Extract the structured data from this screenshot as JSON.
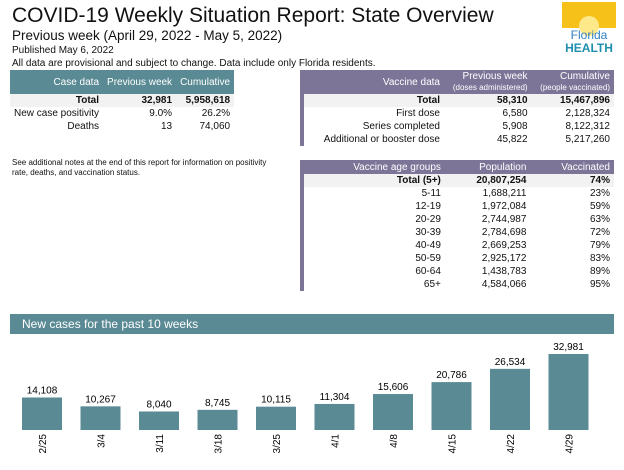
{
  "header": {
    "title": "COVID-19 Weekly Situation Report: State Overview",
    "subtitle": "Previous week (April 29, 2022 - May 5, 2022)",
    "published": "Published May 6, 2022",
    "note": "All data are provisional and subject to change. Data include only Florida residents.",
    "logo_text": "Florida HEALTH"
  },
  "case_table": {
    "headers": [
      "Case data",
      "Previous week",
      "Cumulative"
    ],
    "rows": [
      [
        "Total",
        "32,981",
        "5,958,618"
      ],
      [
        "New case positivity",
        "9.0%",
        "26.2%"
      ],
      [
        "Deaths",
        "13",
        "74,060"
      ]
    ]
  },
  "vaccine_table": {
    "headers": [
      "Vaccine data",
      "Previous week",
      "Cumulative"
    ],
    "subheaders": [
      "(doses administered)",
      "(people vaccinated)"
    ],
    "rows": [
      [
        "Total",
        "58,310",
        "15,467,896"
      ],
      [
        "First dose",
        "6,580",
        "2,128,324"
      ],
      [
        "Series completed",
        "5,908",
        "8,122,312"
      ],
      [
        "Additional or booster dose",
        "45,822",
        "5,217,260"
      ]
    ]
  },
  "additional_note": "See additional notes at the end of this report for information on positivity rate, deaths, and vaccination status.",
  "age_table": {
    "headers": [
      "Vaccine age groups",
      "Population",
      "Vaccinated"
    ],
    "rows": [
      [
        "Total (5+)",
        "20,807,254",
        "74%"
      ],
      [
        "5-11",
        "1,688,211",
        "23%"
      ],
      [
        "12-19",
        "1,972,084",
        "59%"
      ],
      [
        "20-29",
        "2,744,987",
        "63%"
      ],
      [
        "30-39",
        "2,784,698",
        "72%"
      ],
      [
        "40-49",
        "2,669,253",
        "79%"
      ],
      [
        "50-59",
        "2,925,172",
        "83%"
      ],
      [
        "60-64",
        "1,438,783",
        "89%"
      ],
      [
        "65+",
        "4,584,066",
        "95%"
      ]
    ]
  },
  "chart_data": {
    "type": "bar",
    "title": "New cases for the past 10 weeks",
    "categories": [
      "2/25",
      "3/4",
      "3/11",
      "3/18",
      "3/25",
      "4/1",
      "4/8",
      "4/15",
      "4/22",
      "4/29"
    ],
    "values": [
      14108,
      10267,
      8040,
      8745,
      10115,
      11304,
      15606,
      20786,
      26534,
      32981
    ],
    "labels": [
      "14,108",
      "10,267",
      "8,040",
      "8,745",
      "10,115",
      "11,304",
      "15,606",
      "20,786",
      "26,534",
      "32,981"
    ],
    "color": "#5a8a94"
  }
}
